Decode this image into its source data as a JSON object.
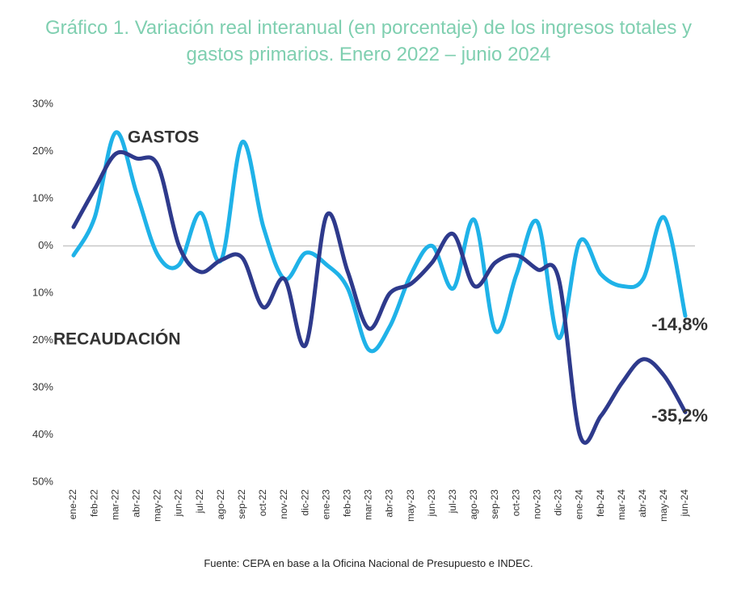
{
  "chart_data": {
    "type": "line",
    "title": "Gráfico 1. Variación real interanual (en porcentaje) de los ingresos totales y gastos primarios. Enero 2022 – junio 2024",
    "source": "Fuente: CEPA en base a la Oficina Nacional de Presupuesto e INDEC.",
    "categories": [
      "ene-22",
      "feb-22",
      "mar-22",
      "abr-22",
      "may-22",
      "jun-22",
      "jul-22",
      "ago-22",
      "sep-22",
      "oct-22",
      "nov-22",
      "dic-22",
      "ene-23",
      "feb-23",
      "mar-23",
      "abr-23",
      "may-23",
      "jun-23",
      "jul-23",
      "ago-23",
      "sep-23",
      "oct-23",
      "nov-23",
      "dic-23",
      "ene-24",
      "feb-24",
      "mar-24",
      "abr-24",
      "may-24",
      "jun-24"
    ],
    "series": [
      {
        "name": "RECAUDACIÓN",
        "color": "#1fb2e8",
        "values": [
          -2,
          6,
          24,
          11,
          -2,
          -4,
          7,
          -3,
          22,
          4,
          -7,
          -1.5,
          -4,
          -9,
          -22,
          -17,
          -6,
          0,
          -9,
          5.5,
          -18,
          -6,
          5,
          -19.5,
          1,
          -6,
          -8.5,
          -7,
          6,
          -14.8
        ],
        "value_labels": [
          null,
          null,
          null,
          null,
          null,
          null,
          null,
          null,
          null,
          null,
          null,
          null,
          null,
          null,
          null,
          null,
          null,
          null,
          null,
          null,
          null,
          null,
          null,
          null,
          null,
          null,
          null,
          null,
          null,
          "-14,8%"
        ]
      },
      {
        "name": "GASTOS",
        "color": "#2e3a8c",
        "values": [
          4,
          12,
          19.5,
          18.5,
          17,
          0,
          -5.5,
          -3,
          -2.5,
          -13,
          -7,
          -21,
          6.5,
          -5.5,
          -17.5,
          -10,
          -8,
          -3.5,
          2.5,
          -8.5,
          -3.5,
          -2,
          -5,
          -7,
          -40,
          -36,
          -29,
          -24,
          -27.5,
          -35.2
        ],
        "value_labels": [
          null,
          null,
          null,
          null,
          null,
          null,
          null,
          null,
          null,
          null,
          null,
          null,
          null,
          null,
          null,
          null,
          null,
          null,
          null,
          null,
          null,
          null,
          null,
          null,
          null,
          null,
          null,
          null,
          null,
          "-35,2%"
        ]
      }
    ],
    "ylim": [
      -50,
      30
    ],
    "yticks": [
      {
        "value": 30,
        "label": "30%"
      },
      {
        "value": 20,
        "label": "20%"
      },
      {
        "value": 10,
        "label": "10%"
      },
      {
        "value": 0,
        "label": "0%"
      },
      {
        "value": -10,
        "label": "10%"
      },
      {
        "value": -20,
        "label": "20%"
      },
      {
        "value": -30,
        "label": "30%"
      },
      {
        "value": -40,
        "label": "40%"
      },
      {
        "value": -50,
        "label": "50%"
      }
    ]
  }
}
